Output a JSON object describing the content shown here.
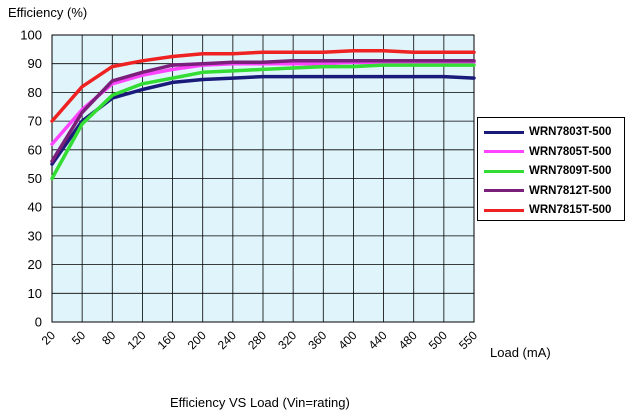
{
  "chart_data": {
    "type": "line",
    "ylabel": "Efficiency (%)",
    "xlabel": "Load (mA)",
    "caption": "Efficiency VS Load (Vin=rating)",
    "categories": [
      "20",
      "50",
      "80",
      "120",
      "160",
      "200",
      "240",
      "280",
      "320",
      "360",
      "400",
      "440",
      "480",
      "500",
      "550"
    ],
    "yticks": [
      "0",
      "10",
      "20",
      "30",
      "40",
      "50",
      "60",
      "70",
      "80",
      "90",
      "100"
    ],
    "ylim": [
      0,
      100
    ],
    "grid": true,
    "legend_position": "right",
    "plot_background": "#e0f5fb",
    "series": [
      {
        "name": "WRN7803T-500",
        "color": "#1a1a7a",
        "values": [
          55,
          70,
          78,
          81,
          83.5,
          84.5,
          85,
          85.5,
          85.5,
          85.5,
          85.5,
          85.5,
          85.5,
          85.5,
          85
        ]
      },
      {
        "name": "WRN7805T-500",
        "color": "#ff44ff",
        "values": [
          62,
          74,
          83,
          86,
          88,
          89.5,
          90,
          90,
          90,
          90,
          90.5,
          90.5,
          90.5,
          90.5,
          90.5
        ]
      },
      {
        "name": "WRN7809T-500",
        "color": "#33dd33",
        "values": [
          50,
          69,
          79,
          83,
          85,
          87,
          87.5,
          88,
          88.5,
          89,
          89,
          89.5,
          89.5,
          89.5,
          89.5
        ]
      },
      {
        "name": "WRN7812T-500",
        "color": "#7a1f7a",
        "values": [
          56,
          73,
          84,
          87,
          89.5,
          90,
          90.5,
          90.5,
          91,
          91,
          91,
          91,
          91,
          91,
          91
        ]
      },
      {
        "name": "WRN7815T-500",
        "color": "#ee2222",
        "values": [
          70,
          82,
          89,
          91,
          92.5,
          93.5,
          93.5,
          94,
          94,
          94,
          94.5,
          94.5,
          94,
          94,
          94
        ]
      }
    ]
  }
}
